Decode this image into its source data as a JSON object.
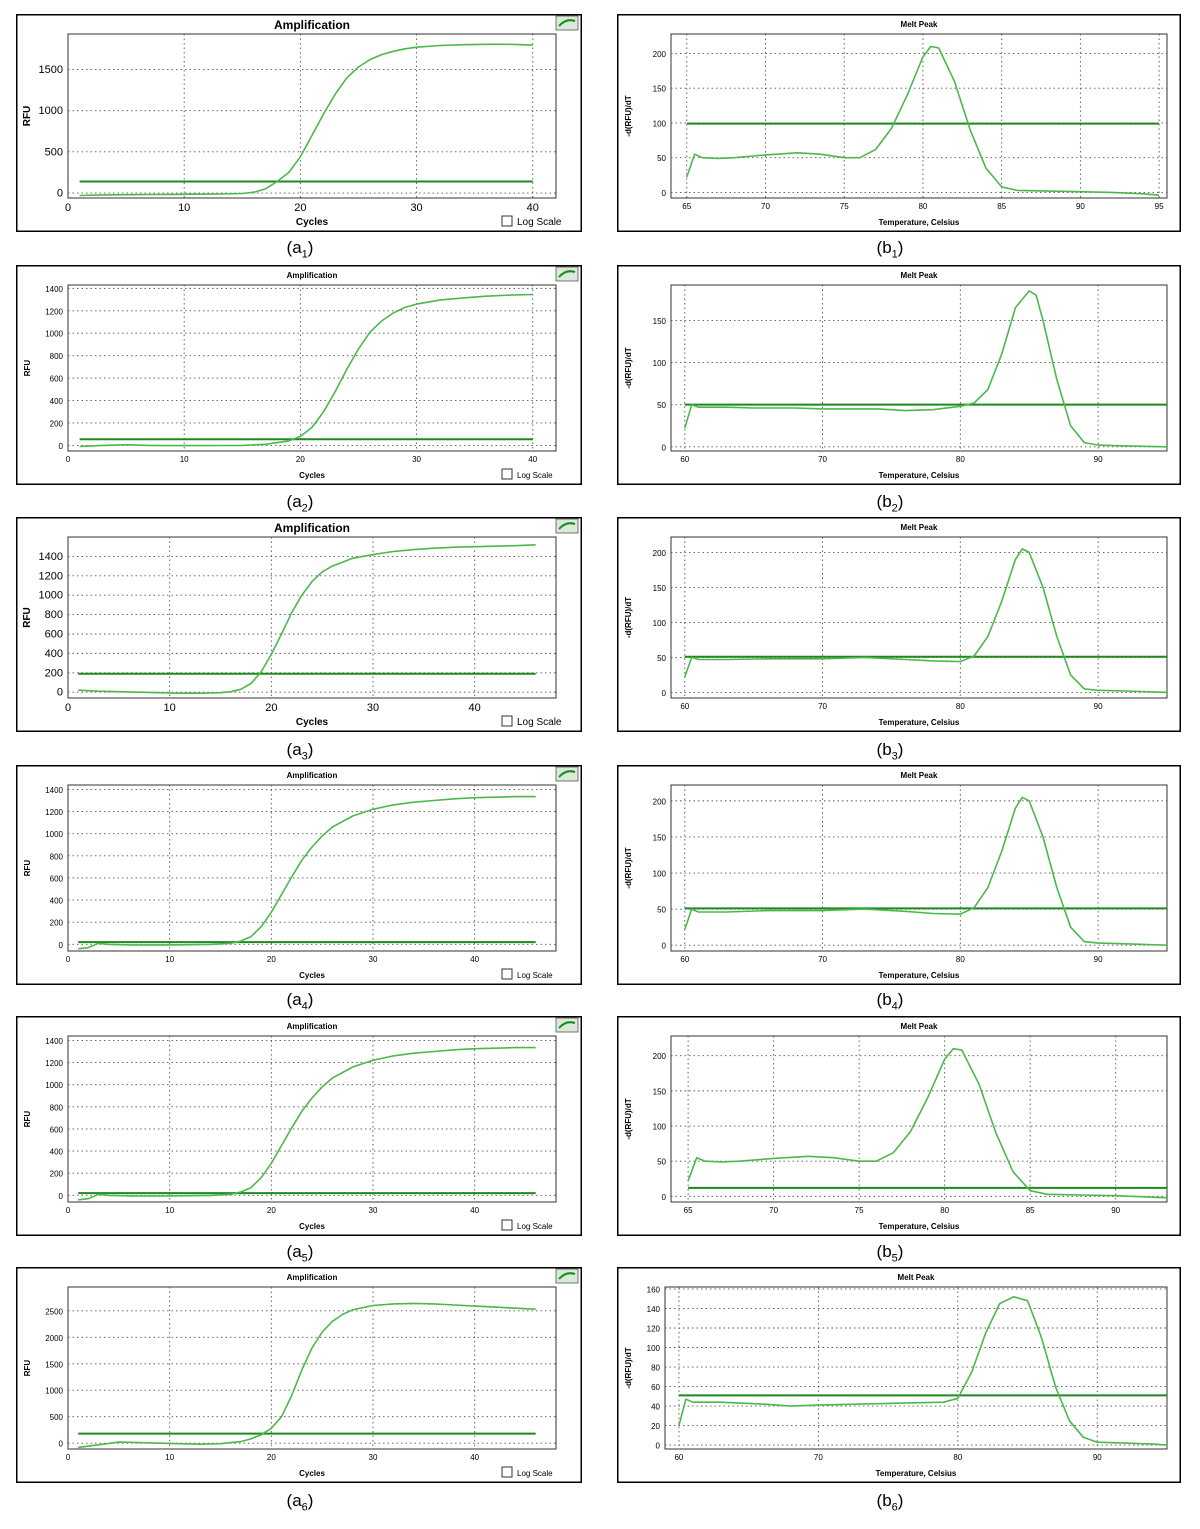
{
  "theme": {
    "curve_color": "#4cb84c",
    "threshold_color": "#1e8a1e",
    "grid_color": "#555555",
    "frame_color": "#000000"
  },
  "icons": {
    "amplification_badge": "green-curve-icon"
  },
  "chart_data": [
    {
      "id": "a1",
      "type": "line",
      "kind": "amplification",
      "caption": "(a",
      "caption_sub": "1",
      "caption_end": ")",
      "title": "Amplification",
      "title_size": "big",
      "xlabel": "Cycles",
      "ylabel": "RFU",
      "xlim": [
        0,
        42
      ],
      "ylim": [
        -60,
        1930
      ],
      "xticks": [
        0,
        10,
        20,
        30,
        40
      ],
      "yticks": [
        0,
        500,
        1000,
        1500
      ],
      "log_scale_label": "Log Scale",
      "log_scale_checked": false,
      "threshold": 140,
      "x": [
        1,
        3,
        5,
        7,
        9,
        11,
        13,
        15,
        16,
        17,
        18,
        19,
        20,
        21,
        22,
        23,
        24,
        25,
        26,
        27,
        28,
        29,
        30,
        32,
        34,
        36,
        38,
        40
      ],
      "y": [
        -30,
        -22,
        -20,
        -18,
        -16,
        -14,
        -12,
        -5,
        10,
        50,
        140,
        250,
        440,
        700,
        960,
        1200,
        1400,
        1530,
        1620,
        1680,
        1720,
        1750,
        1770,
        1790,
        1800,
        1805,
        1805,
        1795
      ]
    },
    {
      "id": "b1",
      "type": "line",
      "kind": "melt",
      "caption": "(b",
      "caption_sub": "1",
      "caption_end": ")",
      "title": "Melt Peak",
      "title_size": "small",
      "xlabel": "Temperature, Celsius",
      "ylabel": "-d(RFU)/dT",
      "xlim": [
        64,
        95.5
      ],
      "ylim": [
        -8,
        228
      ],
      "xticks": [
        65,
        70,
        75,
        80,
        85,
        90,
        95
      ],
      "yticks": [
        0,
        50,
        100,
        150,
        200
      ],
      "threshold": 99,
      "x": [
        65,
        65.5,
        66,
        67,
        68,
        70,
        72,
        73.5,
        75,
        76,
        77,
        78,
        79,
        80,
        80.5,
        81,
        82,
        83,
        84,
        85,
        86,
        88,
        90,
        92,
        94,
        95
      ],
      "y": [
        22,
        55,
        50,
        49,
        50,
        54,
        57,
        55,
        50,
        50,
        62,
        92,
        140,
        195,
        210,
        208,
        160,
        90,
        35,
        8,
        3,
        2,
        1,
        0,
        -2,
        -4
      ]
    },
    {
      "id": "a2",
      "type": "line",
      "kind": "amplification",
      "caption": "(a",
      "caption_sub": "2",
      "caption_end": ")",
      "title": "Amplification",
      "title_size": "small",
      "xlabel": "Cycles",
      "ylabel": "RFU",
      "xlim": [
        0,
        42
      ],
      "ylim": [
        -50,
        1430
      ],
      "xticks": [
        0,
        10,
        20,
        30,
        40
      ],
      "yticks": [
        0,
        200,
        400,
        600,
        800,
        1000,
        1200,
        1400
      ],
      "log_scale_label": "Log Scale",
      "log_scale_checked": false,
      "threshold": 55,
      "x": [
        1,
        3,
        5,
        7,
        9,
        11,
        13,
        15,
        17,
        19,
        20,
        21,
        22,
        23,
        24,
        25,
        26,
        27,
        28,
        29,
        30,
        32,
        34,
        36,
        38,
        40
      ],
      "y": [
        -10,
        0,
        5,
        0,
        -2,
        -2,
        -1,
        0,
        10,
        40,
        80,
        160,
        300,
        480,
        680,
        860,
        1010,
        1110,
        1180,
        1230,
        1260,
        1295,
        1315,
        1330,
        1340,
        1345
      ]
    },
    {
      "id": "b2",
      "type": "line",
      "kind": "melt",
      "caption": "(b",
      "caption_sub": "2",
      "caption_end": ")",
      "title": "Melt Peak",
      "title_size": "small",
      "xlabel": "Temperature, Celsius",
      "ylabel": "-d(RFU)/dT",
      "xlim": [
        59,
        95
      ],
      "ylim": [
        -5,
        192
      ],
      "xticks": [
        60,
        70,
        80,
        90
      ],
      "yticks": [
        0,
        50,
        100,
        150
      ],
      "threshold": 50,
      "x": [
        60,
        60.5,
        61,
        63,
        65,
        68,
        70,
        72,
        74,
        76,
        78,
        80,
        81,
        82,
        83,
        84,
        85,
        85.5,
        86,
        87,
        88,
        89,
        90,
        92,
        95
      ],
      "y": [
        22,
        50,
        47,
        47,
        46,
        46,
        45,
        45,
        45,
        43,
        44,
        48,
        52,
        68,
        110,
        165,
        185,
        180,
        150,
        80,
        25,
        5,
        2,
        1,
        0
      ]
    },
    {
      "id": "a3",
      "type": "line",
      "kind": "amplification",
      "caption": "(a",
      "caption_sub": "3",
      "caption_end": ")",
      "title": "Amplification",
      "title_size": "big",
      "xlabel": "Cycles",
      "ylabel": "RFU",
      "xlim": [
        0,
        48
      ],
      "ylim": [
        -60,
        1600
      ],
      "xticks": [
        0,
        10,
        20,
        30,
        40
      ],
      "yticks": [
        0,
        200,
        400,
        600,
        800,
        1000,
        1200,
        1400
      ],
      "log_scale_label": "Log Scale",
      "log_scale_checked": false,
      "threshold": 190,
      "x": [
        1,
        3,
        5,
        7,
        9,
        11,
        13,
        15,
        16,
        17,
        18,
        19,
        20,
        21,
        22,
        23,
        24,
        25,
        26,
        28,
        30,
        32,
        34,
        36,
        38,
        40,
        42,
        44,
        46
      ],
      "y": [
        20,
        10,
        5,
        0,
        -5,
        -10,
        -10,
        -5,
        5,
        30,
        90,
        210,
        390,
        600,
        820,
        1000,
        1140,
        1240,
        1300,
        1380,
        1420,
        1450,
        1470,
        1485,
        1495,
        1500,
        1505,
        1510,
        1520
      ]
    },
    {
      "id": "b3",
      "type": "line",
      "kind": "melt",
      "caption": "(b",
      "caption_sub": "3",
      "caption_end": ")",
      "title": "Melt Peak",
      "title_size": "small",
      "xlabel": "Temperature, Celsius",
      "ylabel": "-d(RFU)/dT",
      "xlim": [
        59,
        95
      ],
      "ylim": [
        -8,
        222
      ],
      "xticks": [
        60,
        70,
        80,
        90
      ],
      "yticks": [
        0,
        50,
        100,
        150,
        200
      ],
      "threshold": 51,
      "x": [
        60,
        60.5,
        61,
        63,
        66,
        70,
        73,
        76,
        78,
        80,
        81,
        82,
        83,
        84,
        84.5,
        85,
        86,
        87,
        88,
        89,
        90,
        92,
        95
      ],
      "y": [
        22,
        50,
        47,
        47,
        48,
        48,
        50,
        47,
        45,
        44,
        52,
        80,
        130,
        190,
        205,
        200,
        150,
        80,
        25,
        5,
        3,
        2,
        0
      ]
    },
    {
      "id": "a4",
      "type": "line",
      "kind": "amplification",
      "caption": "(a",
      "caption_sub": "4",
      "caption_end": ")",
      "title": "Amplification",
      "title_size": "small",
      "xlabel": "Cycles",
      "ylabel": "RFU",
      "xlim": [
        0,
        48
      ],
      "ylim": [
        -60,
        1440
      ],
      "xticks": [
        0,
        10,
        20,
        30,
        40
      ],
      "yticks": [
        0,
        200,
        400,
        600,
        800,
        1000,
        1200,
        1400
      ],
      "log_scale_label": "Log Scale",
      "log_scale_checked": false,
      "threshold": 20,
      "x": [
        1,
        2,
        3,
        4,
        6,
        8,
        10,
        12,
        14,
        16,
        17,
        18,
        19,
        20,
        21,
        22,
        23,
        24,
        25,
        26,
        28,
        30,
        32,
        34,
        36,
        38,
        40,
        42,
        44,
        46
      ],
      "y": [
        -40,
        -30,
        10,
        0,
        -5,
        -5,
        -5,
        -3,
        0,
        10,
        30,
        70,
        160,
        290,
        450,
        610,
        760,
        880,
        980,
        1060,
        1160,
        1220,
        1260,
        1285,
        1300,
        1315,
        1325,
        1330,
        1335,
        1335
      ]
    },
    {
      "id": "b4",
      "type": "line",
      "kind": "melt",
      "caption": "(b",
      "caption_sub": "4",
      "caption_end": ")",
      "title": "Melt Peak",
      "title_size": "small",
      "xlabel": "Temperature, Celsius",
      "ylabel": "-d(RFU)/dT",
      "xlim": [
        59,
        95
      ],
      "ylim": [
        -8,
        222
      ],
      "xticks": [
        60,
        70,
        80,
        90
      ],
      "yticks": [
        0,
        50,
        100,
        150,
        200
      ],
      "threshold": 51,
      "x": [
        60,
        60.5,
        61,
        63,
        66,
        70,
        73,
        76,
        78,
        80,
        81,
        82,
        83,
        84,
        84.5,
        85,
        86,
        87,
        88,
        89,
        90,
        92,
        95
      ],
      "y": [
        22,
        50,
        46,
        46,
        48,
        48,
        50,
        47,
        44,
        43,
        52,
        80,
        130,
        190,
        205,
        200,
        150,
        80,
        25,
        5,
        3,
        2,
        0
      ]
    },
    {
      "id": "a5",
      "type": "line",
      "kind": "amplification",
      "caption": "(a",
      "caption_sub": "5",
      "caption_end": ")",
      "title": "Amplification",
      "title_size": "small",
      "xlabel": "Cycles",
      "ylabel": "RFU",
      "xlim": [
        0,
        48
      ],
      "ylim": [
        -60,
        1440
      ],
      "xticks": [
        0,
        10,
        20,
        30,
        40
      ],
      "yticks": [
        0,
        200,
        400,
        600,
        800,
        1000,
        1200,
        1400
      ],
      "log_scale_label": "Log Scale",
      "log_scale_checked": false,
      "threshold": 20,
      "x": [
        1,
        2,
        3,
        4,
        6,
        8,
        10,
        12,
        14,
        16,
        17,
        18,
        19,
        20,
        21,
        22,
        23,
        24,
        25,
        26,
        28,
        30,
        32,
        34,
        36,
        38,
        40,
        42,
        44,
        46
      ],
      "y": [
        -40,
        -30,
        10,
        0,
        -5,
        -5,
        -5,
        -3,
        0,
        10,
        30,
        70,
        160,
        290,
        450,
        610,
        760,
        880,
        980,
        1060,
        1160,
        1220,
        1260,
        1285,
        1300,
        1315,
        1325,
        1330,
        1335,
        1335
      ]
    },
    {
      "id": "b5",
      "type": "line",
      "kind": "melt",
      "caption": "(b",
      "caption_sub": "5",
      "caption_end": ")",
      "title": "Melt Peak",
      "title_size": "small",
      "xlabel": "Temperature, Celsius",
      "ylabel": "-d(RFU)/dT",
      "xlim": [
        64,
        93
      ],
      "ylim": [
        -8,
        228
      ],
      "xticks": [
        65,
        70,
        75,
        80,
        85,
        90
      ],
      "yticks": [
        0,
        50,
        100,
        150,
        200
      ],
      "threshold": 12,
      "x": [
        65,
        65.5,
        66,
        67,
        68,
        70,
        72,
        73.5,
        75,
        76,
        77,
        78,
        79,
        80,
        80.5,
        81,
        82,
        83,
        84,
        85,
        86,
        88,
        90,
        93
      ],
      "y": [
        22,
        55,
        50,
        49,
        50,
        54,
        57,
        55,
        50,
        50,
        62,
        92,
        140,
        195,
        210,
        208,
        160,
        90,
        35,
        8,
        3,
        2,
        1,
        -2
      ]
    },
    {
      "id": "a6",
      "type": "line",
      "kind": "amplification",
      "caption": "(a",
      "caption_sub": "6",
      "caption_end": ")",
      "title": "Amplification",
      "title_size": "small",
      "xlabel": "Cycles",
      "ylabel": "RFU",
      "xlim": [
        0,
        48
      ],
      "ylim": [
        -110,
        2950
      ],
      "xticks": [
        0,
        10,
        20,
        30,
        40
      ],
      "yticks": [
        0,
        500,
        1000,
        1500,
        2000,
        2500
      ],
      "log_scale_label": "Log Scale",
      "log_scale_checked": false,
      "threshold": 180,
      "x": [
        1,
        3,
        5,
        7,
        9,
        11,
        13,
        15,
        17,
        18,
        19,
        20,
        21,
        22,
        23,
        24,
        25,
        26,
        27,
        28,
        30,
        32,
        34,
        36,
        38,
        40,
        42,
        44,
        46
      ],
      "y": [
        -80,
        -30,
        20,
        10,
        0,
        -10,
        -20,
        -10,
        30,
        80,
        160,
        280,
        500,
        900,
        1380,
        1800,
        2100,
        2300,
        2430,
        2520,
        2600,
        2630,
        2640,
        2630,
        2610,
        2590,
        2570,
        2550,
        2530
      ]
    },
    {
      "id": "b6",
      "type": "line",
      "kind": "melt",
      "caption": "(b",
      "caption_sub": "6",
      "caption_end": ")",
      "title": "Melt Peak",
      "title_size": "small",
      "xlabel": "Temperature, Celsius",
      "ylabel": "-d(RFU)/dT",
      "xlim": [
        59,
        95
      ],
      "ylim": [
        -4,
        162
      ],
      "xticks": [
        60,
        70,
        80,
        90
      ],
      "yticks": [
        0,
        20,
        40,
        60,
        80,
        100,
        120,
        140,
        160
      ],
      "threshold": 51,
      "x": [
        60,
        60.5,
        61,
        63,
        66,
        68,
        70,
        73,
        76,
        79,
        80,
        81,
        82,
        83,
        84,
        85,
        86,
        87,
        88,
        89,
        90,
        92,
        94,
        95
      ],
      "y": [
        20,
        47,
        44,
        44,
        42,
        40,
        41,
        42,
        43,
        44,
        48,
        75,
        115,
        145,
        152,
        148,
        110,
        60,
        25,
        8,
        3,
        2,
        1,
        0
      ]
    }
  ]
}
